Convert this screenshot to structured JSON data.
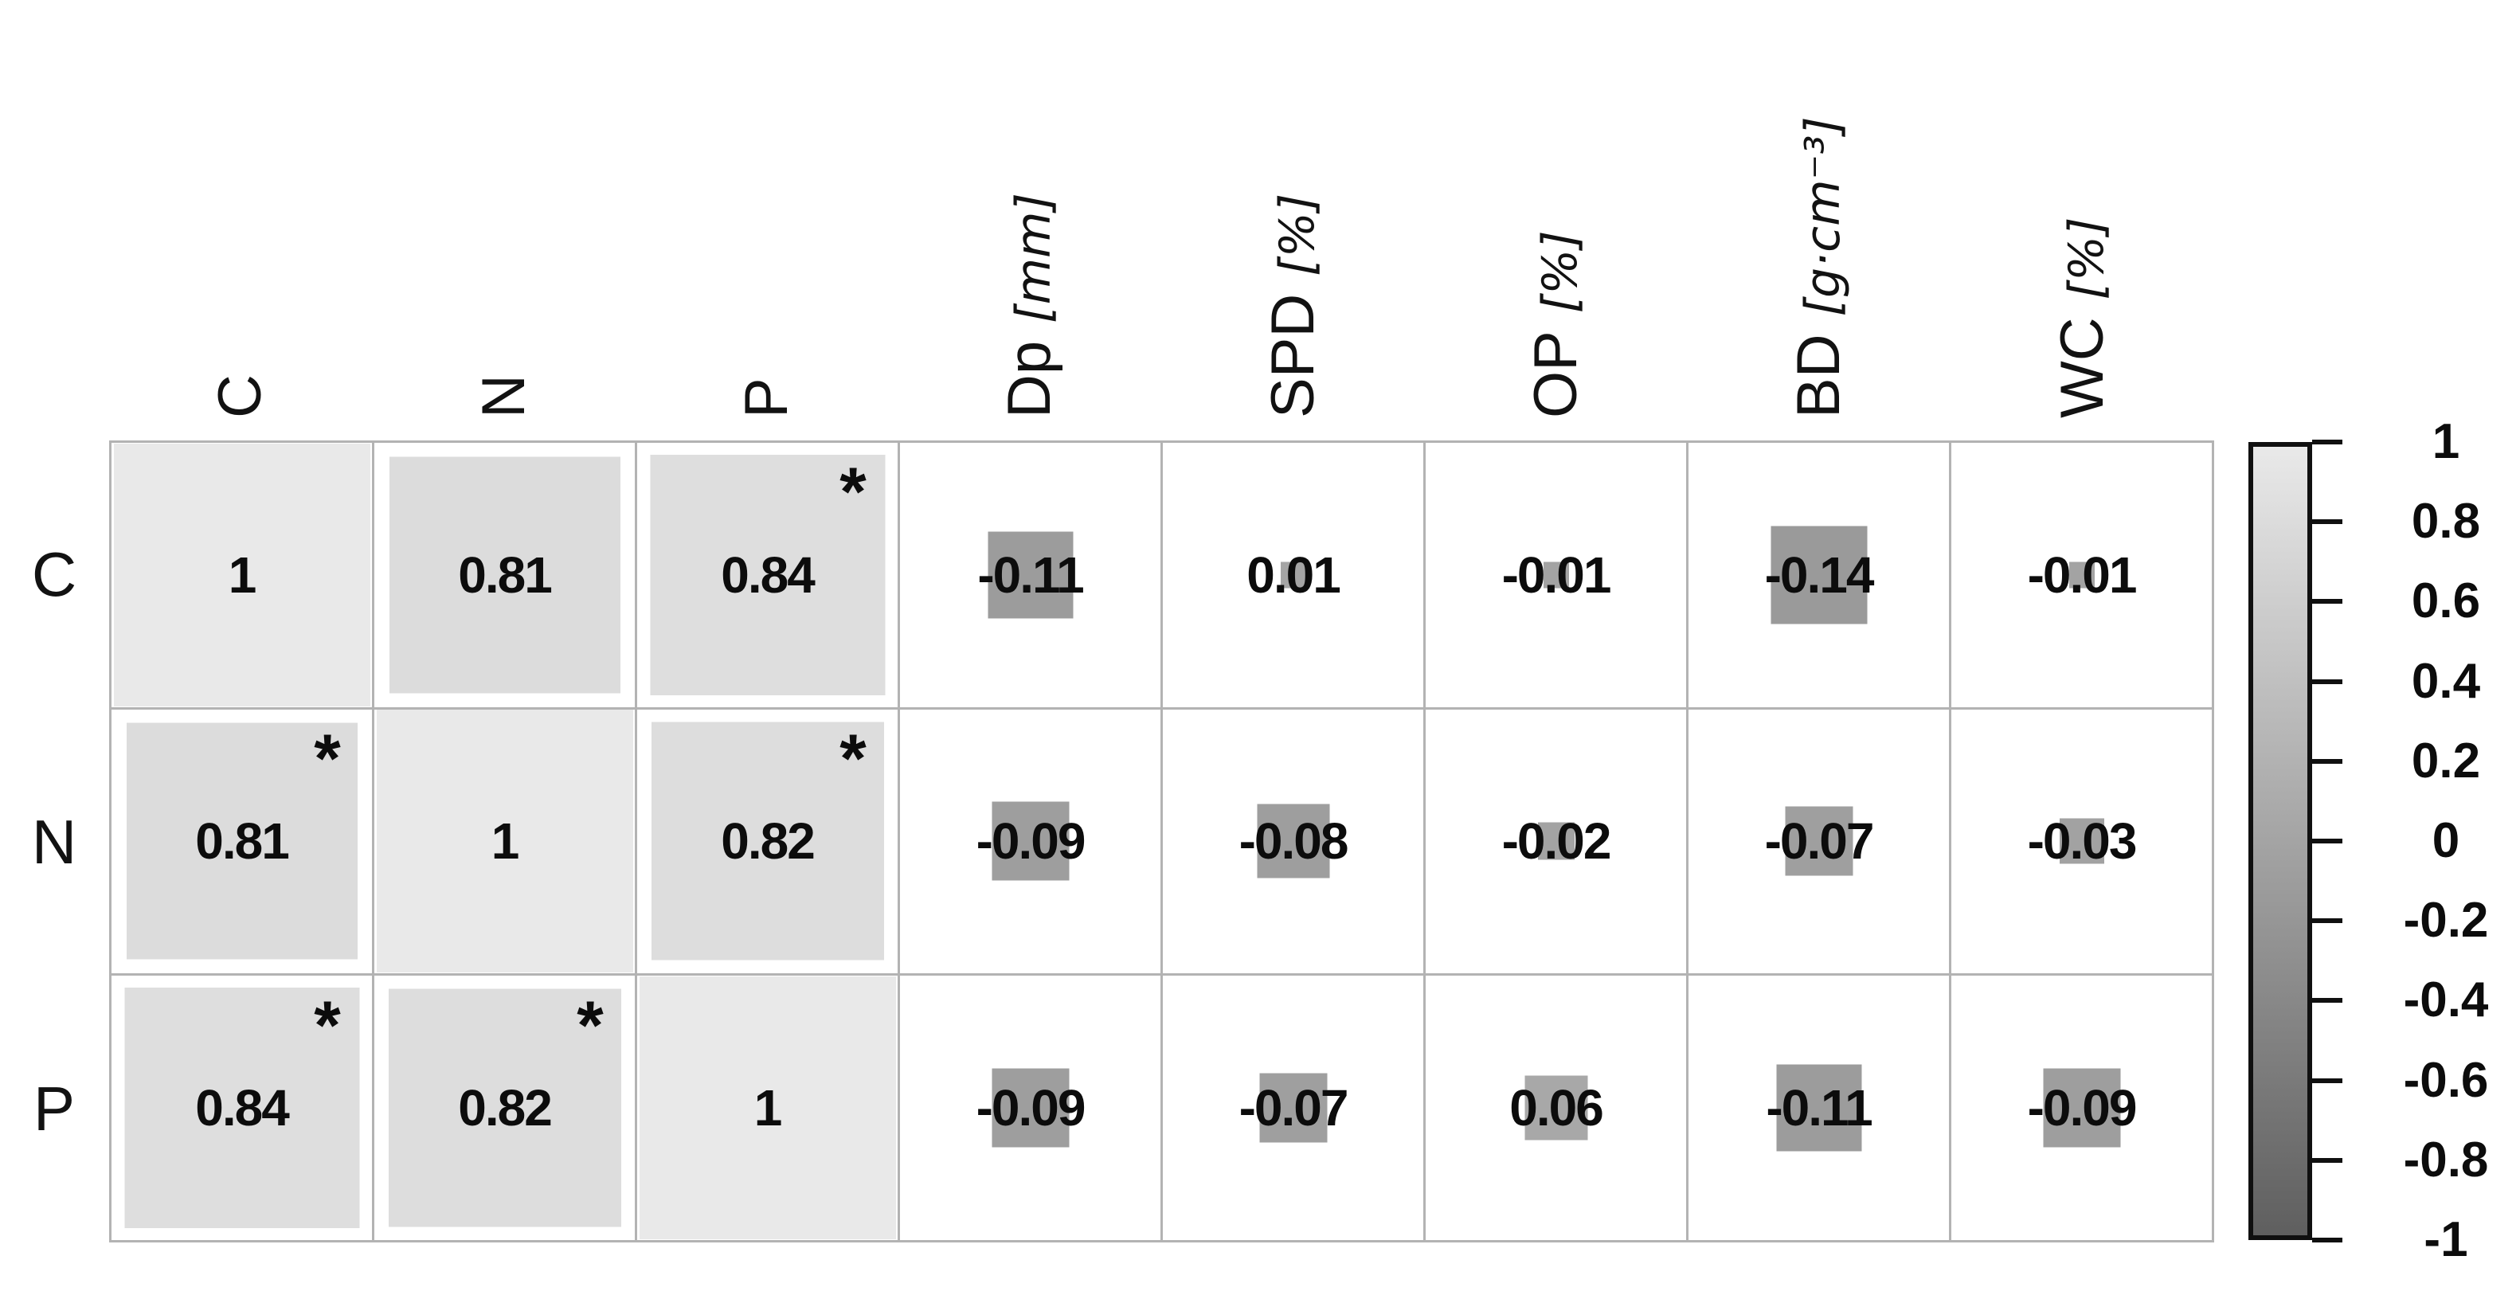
{
  "chart_data": {
    "type": "heatmap",
    "title": "",
    "rows": [
      "C",
      "N",
      "P"
    ],
    "columns": [
      {
        "name": "C",
        "unit": ""
      },
      {
        "name": "N",
        "unit": ""
      },
      {
        "name": "P",
        "unit": ""
      },
      {
        "name": "Dp",
        "unit": "[mm]"
      },
      {
        "name": "SPD",
        "unit": "[%]"
      },
      {
        "name": "OP",
        "unit": "[%]"
      },
      {
        "name": "BD",
        "unit": "[g·cm⁻³]"
      },
      {
        "name": "WC",
        "unit": "[%]"
      }
    ],
    "matrix": [
      [
        1,
        0.81,
        0.84,
        -0.11,
        0.01,
        -0.01,
        -0.14,
        -0.01
      ],
      [
        0.81,
        1,
        0.82,
        -0.09,
        -0.08,
        -0.02,
        -0.07,
        -0.03
      ],
      [
        0.84,
        0.82,
        1,
        -0.09,
        -0.07,
        0.06,
        -0.11,
        -0.09
      ]
    ],
    "display": [
      [
        "1",
        "0.81",
        "0.84",
        "-0.11",
        "0.01",
        "-0.01",
        "-0.14",
        "-0.01"
      ],
      [
        "0.81",
        "1",
        "0.82",
        "-0.09",
        "-0.08",
        "-0.02",
        "-0.07",
        "-0.03"
      ],
      [
        "0.84",
        "0.82",
        "1",
        "-0.09",
        "-0.07",
        "0.06",
        "-0.11",
        "-0.09"
      ]
    ],
    "significance": [
      [
        false,
        false,
        true,
        false,
        false,
        false,
        false,
        false
      ],
      [
        true,
        false,
        true,
        false,
        false,
        false,
        false,
        false
      ],
      [
        true,
        true,
        false,
        false,
        false,
        false,
        false,
        false
      ]
    ],
    "significance_marker": "*",
    "square_size_rule": "side proportional to sqrt(abs(r))",
    "colorbar": {
      "tick_labels": [
        "1",
        "0.8",
        "0.6",
        "0.4",
        "0.2",
        "0",
        "-0.2",
        "-0.4",
        "-0.6",
        "-0.8",
        "-1"
      ],
      "min": -1,
      "max": 1,
      "top_color": "#e9e9e9",
      "bottom_color": "#5f5f5f",
      "border_color": "#101010",
      "legend_position": "right"
    },
    "grid_line_color": "#b3b3b3",
    "text_color": "#0c0c0c",
    "xlabel": "",
    "ylabel": "",
    "legend_on": true,
    "grid_on": true
  }
}
